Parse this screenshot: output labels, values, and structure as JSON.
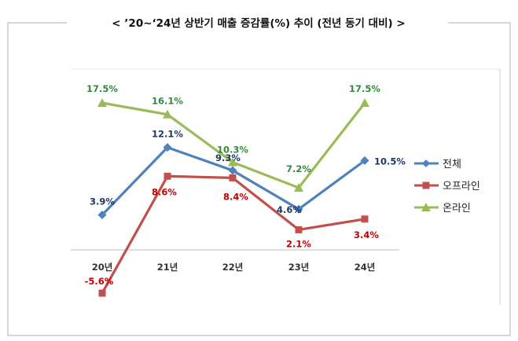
{
  "chart_data": {
    "type": "line",
    "title": "< ’20~‘24년 상반기 매출 증감률(%) 추이 (전년 동기 대비) >",
    "categories": [
      "20년",
      "21년",
      "22년",
      "23년",
      "24년"
    ],
    "series": [
      {
        "name": "전체",
        "values": [
          3.9,
          12.1,
          9.3,
          4.6,
          10.5
        ],
        "labels": [
          "3.9%",
          "12.1%",
          "9.3%",
          "4.6%",
          "10.5%"
        ],
        "color": "#4F81BD",
        "marker": "diamond",
        "label_color": "#1F3864"
      },
      {
        "name": "오프라인",
        "values": [
          -5.6,
          8.6,
          8.4,
          2.1,
          3.4
        ],
        "labels": [
          "-5.6%",
          "8.6%",
          "8.4%",
          "2.1%",
          "3.4%"
        ],
        "color": "#C0504D",
        "marker": "square",
        "label_color": "#C00000"
      },
      {
        "name": "온라인",
        "values": [
          17.5,
          16.1,
          10.3,
          7.2,
          17.5
        ],
        "labels": [
          "17.5%",
          "16.1%",
          "10.3%",
          "7.2%",
          "17.5%"
        ],
        "color": "#9BBB59",
        "marker": "triangle",
        "label_color": "#2E8B3C"
      }
    ],
    "ylim": [
      -8,
      22
    ],
    "axis_line_value": 0,
    "grid": false,
    "legend_position": "right",
    "xlabel": "",
    "ylabel": ""
  }
}
